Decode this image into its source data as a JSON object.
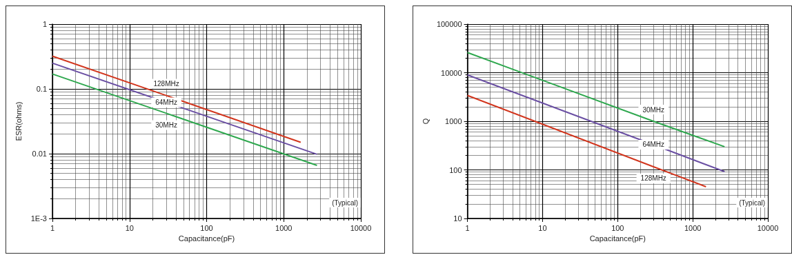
{
  "chart_data": [
    {
      "type": "line",
      "xlabel": "Capacitance(pF)",
      "ylabel": "ESR(ohms)",
      "log": "xy",
      "grid": true,
      "legend": false,
      "marker": "none",
      "line_style": "solid",
      "xlim": [
        1,
        10000
      ],
      "xticks": [
        1,
        10,
        100,
        1000,
        10000
      ],
      "ylim": [
        0.001,
        1
      ],
      "yticks": [
        {
          "value": 0.001,
          "label": "1E-3"
        },
        0.01,
        0.1,
        1
      ],
      "annotations": [
        "(Typical)"
      ],
      "series": [
        {
          "name": "128MHz",
          "color": "#d2361e",
          "x": [
            1,
            30,
            1660
          ],
          "values": [
            0.32,
            0.079,
            0.015
          ]
        },
        {
          "name": "64MHz",
          "color": "#6a4fa3",
          "x": [
            1,
            30,
            2700
          ],
          "values": [
            0.25,
            0.062,
            0.0098
          ]
        },
        {
          "name": "30MHz",
          "color": "#2fa84f",
          "x": [
            1,
            30,
            2700
          ],
          "values": [
            0.17,
            0.042,
            0.0066
          ]
        }
      ]
    },
    {
      "type": "line",
      "xlabel": "Capacitance(pF)",
      "ylabel": "Q",
      "log": "xy",
      "grid": true,
      "legend": false,
      "marker": "none",
      "line_style": "solid",
      "xlim": [
        1,
        10000
      ],
      "xticks": [
        1,
        10,
        100,
        1000,
        10000
      ],
      "ylim": [
        10,
        100000
      ],
      "yticks": [
        10,
        100,
        1000,
        10000,
        100000
      ],
      "annotations": [
        "(Typical)"
      ],
      "series": [
        {
          "name": "30MHz",
          "color": "#2fa84f",
          "x": [
            1,
            300,
            2650
          ],
          "values": [
            26000,
            1000,
            300
          ]
        },
        {
          "name": "64MHz",
          "color": "#6a4fa3",
          "x": [
            1,
            300,
            2650
          ],
          "values": [
            9000,
            330,
            92
          ]
        },
        {
          "name": "128MHz",
          "color": "#d2361e",
          "x": [
            1,
            300,
            1500
          ],
          "values": [
            3400,
            116,
            45
          ]
        }
      ]
    }
  ]
}
